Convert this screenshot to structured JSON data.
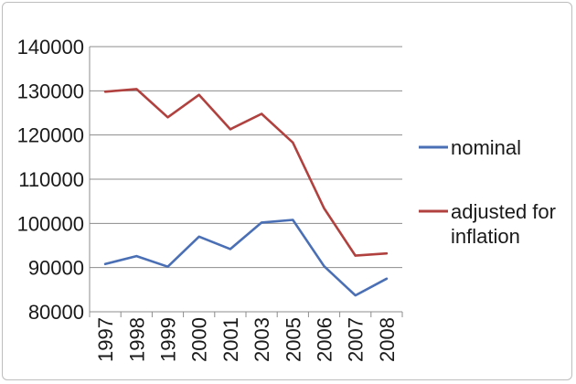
{
  "chart_data": {
    "type": "line",
    "title": "",
    "xlabel": "",
    "ylabel": "",
    "categories": [
      "1997",
      "1998",
      "1999",
      "2000",
      "2001",
      "2003",
      "2005",
      "2006",
      "2007",
      "2008"
    ],
    "ylim": [
      80000,
      140000
    ],
    "yticks": [
      "80000",
      "90000",
      "100000",
      "110000",
      "120000",
      "130000",
      "140000"
    ],
    "grid": "horizontal",
    "legend_position": "right",
    "series": [
      {
        "name": "nominal",
        "color": "#4a6fb5",
        "values": [
          90800,
          92600,
          90200,
          97000,
          94200,
          100200,
          100800,
          90300,
          83700,
          87500
        ]
      },
      {
        "name": "adjusted for inflation",
        "color": "#b0413e",
        "values": [
          129800,
          130400,
          124000,
          129100,
          121300,
          124800,
          118300,
          103400,
          92700,
          93200
        ]
      }
    ]
  }
}
